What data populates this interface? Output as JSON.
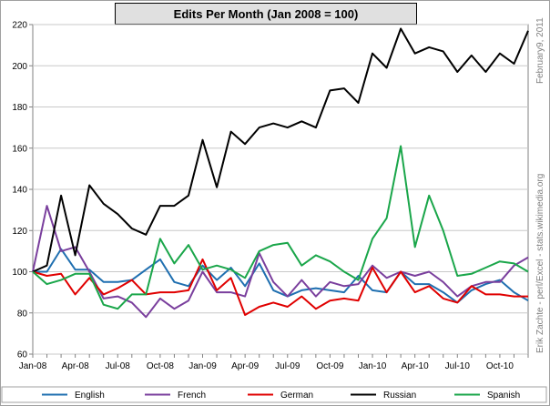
{
  "chart_data": {
    "type": "line",
    "title": "Edits Per Month  (Jan 2008 = 100)",
    "xlabel": "",
    "ylabel": "",
    "ylim": [
      60,
      220
    ],
    "yticks": [
      60,
      80,
      100,
      120,
      140,
      160,
      180,
      200,
      220
    ],
    "x_tick_labels": [
      "Jan-08",
      "Apr-08",
      "Jul-08",
      "Oct-08",
      "Jan-09",
      "Apr-09",
      "Jul-09",
      "Oct-09",
      "Jan-10",
      "Apr-10",
      "Jul-10",
      "Oct-10"
    ],
    "x": [
      "Jan-08",
      "Feb-08",
      "Mar-08",
      "Apr-08",
      "May-08",
      "Jun-08",
      "Jul-08",
      "Aug-08",
      "Sep-08",
      "Oct-08",
      "Nov-08",
      "Dec-08",
      "Jan-09",
      "Feb-09",
      "Mar-09",
      "Apr-09",
      "May-09",
      "Jun-09",
      "Jul-09",
      "Aug-09",
      "Sep-09",
      "Oct-09",
      "Nov-09",
      "Dec-09",
      "Jan-10",
      "Feb-10",
      "Mar-10",
      "Apr-10",
      "May-10",
      "Jun-10",
      "Jul-10",
      "Aug-10",
      "Sep-10",
      "Oct-10",
      "Nov-10",
      "Dec-10"
    ],
    "grid": true,
    "legend_position": "bottom",
    "series": [
      {
        "name": "English",
        "color": "#1f6fb0",
        "values": [
          100,
          100,
          111,
          101,
          101,
          95,
          95,
          96,
          101,
          106,
          95,
          93,
          103,
          96,
          102,
          93,
          104,
          91,
          88,
          91,
          92,
          91,
          90,
          98,
          91,
          90,
          100,
          94,
          94,
          90,
          85,
          91,
          94,
          96,
          90,
          86
        ]
      },
      {
        "name": "French",
        "color": "#7a3f9d",
        "values": [
          100,
          132,
          110,
          112,
          100,
          87,
          88,
          85,
          78,
          87,
          82,
          86,
          100,
          90,
          90,
          88,
          109,
          95,
          88,
          96,
          88,
          95,
          93,
          94,
          103,
          97,
          100,
          98,
          100,
          95,
          88,
          93,
          95,
          95,
          103,
          107
        ]
      },
      {
        "name": "German",
        "color": "#e00000",
        "values": [
          100,
          98,
          99,
          89,
          97,
          89,
          92,
          96,
          89,
          90,
          90,
          91,
          106,
          91,
          97,
          79,
          83,
          85,
          83,
          88,
          82,
          86,
          87,
          86,
          102,
          90,
          100,
          90,
          93,
          87,
          85,
          93,
          89,
          89,
          88,
          88
        ]
      },
      {
        "name": "Russian",
        "color": "#000000",
        "values": [
          100,
          103,
          137,
          108,
          142,
          133,
          128,
          121,
          118,
          132,
          132,
          137,
          164,
          141,
          168,
          162,
          170,
          172,
          170,
          173,
          170,
          188,
          189,
          182,
          206,
          199,
          218,
          206,
          209,
          207,
          197,
          205,
          197,
          206,
          201,
          217
        ]
      },
      {
        "name": "Spanish",
        "color": "#1aa64a",
        "values": [
          100,
          94,
          96,
          99,
          99,
          84,
          82,
          89,
          89,
          116,
          104,
          113,
          101,
          103,
          101,
          97,
          110,
          113,
          114,
          103,
          108,
          105,
          100,
          96,
          116,
          126,
          161,
          112,
          137,
          120,
          98,
          99,
          102,
          105,
          104,
          100
        ]
      }
    ]
  },
  "side_note": "Erik Zachte  -  perl/Excel  -  stats.wikimedia.org",
  "side_date": "February9, 2011"
}
